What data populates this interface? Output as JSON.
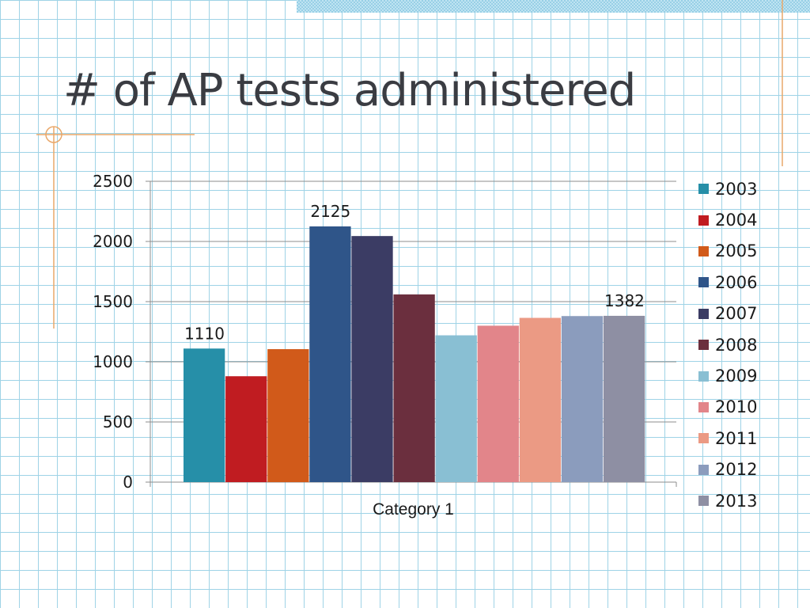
{
  "slide": {
    "title": "# of AP tests administered"
  },
  "chart_data": {
    "type": "bar",
    "categories": [
      "Category 1"
    ],
    "series": [
      {
        "name": "2003",
        "values": [
          1110
        ],
        "color": "#268fa8"
      },
      {
        "name": "2004",
        "values": [
          880
        ],
        "color": "#c01c21"
      },
      {
        "name": "2005",
        "values": [
          1105
        ],
        "color": "#d15a1a"
      },
      {
        "name": "2006",
        "values": [
          2125
        ],
        "color": "#2f5589"
      },
      {
        "name": "2007",
        "values": [
          2045
        ],
        "color": "#3b3c64"
      },
      {
        "name": "2008",
        "values": [
          1560
        ],
        "color": "#6b2f3e"
      },
      {
        "name": "2009",
        "values": [
          1220
        ],
        "color": "#89bfd3"
      },
      {
        "name": "2010",
        "values": [
          1300
        ],
        "color": "#e2858a"
      },
      {
        "name": "2011",
        "values": [
          1365
        ],
        "color": "#eb9a84"
      },
      {
        "name": "2012",
        "values": [
          1380
        ],
        "color": "#8b9cbd"
      },
      {
        "name": "2013",
        "values": [
          1382
        ],
        "color": "#8e8fa3"
      }
    ],
    "data_labels": [
      {
        "series": "2003",
        "text": "1110"
      },
      {
        "series": "2006",
        "text": "2125"
      },
      {
        "series": "2013",
        "text": "1382"
      }
    ],
    "yticks": [
      "0",
      "500",
      "1000",
      "1500",
      "2000",
      "2500"
    ],
    "ylim": [
      0,
      2500
    ],
    "grid": true,
    "legend": "right",
    "xlabel": "",
    "ylabel": ""
  }
}
